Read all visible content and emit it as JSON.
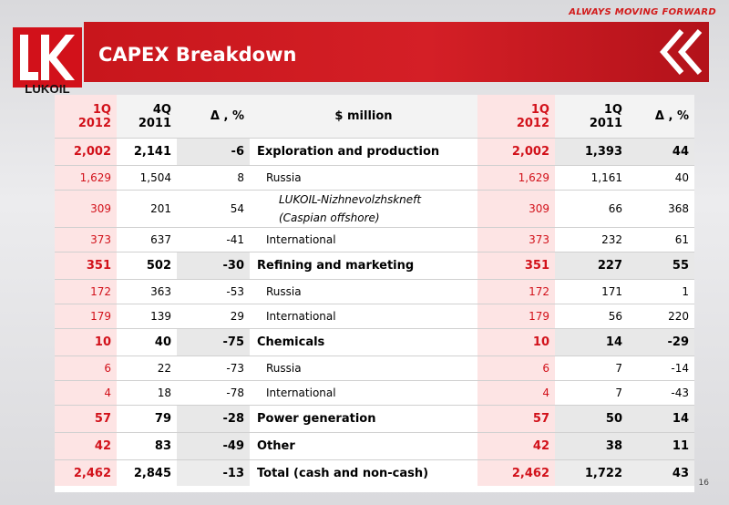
{
  "header": {
    "tagline": "ALWAYS MOVING FORWARD",
    "logo_text": "LUKOIL",
    "title": "CAPEX Breakdown"
  },
  "table": {
    "columns": [
      {
        "line1": "1Q",
        "line2": "2012"
      },
      {
        "line1": "4Q",
        "line2": "2011"
      },
      {
        "line1": "Δ , %",
        "line2": ""
      },
      {
        "line1": "$ million",
        "line2": ""
      },
      {
        "line1": "1Q",
        "line2": "2012"
      },
      {
        "line1": "1Q",
        "line2": "2011"
      },
      {
        "line1": "Δ , %",
        "line2": ""
      }
    ],
    "rows": [
      {
        "kind": "major",
        "a": "2,002",
        "b": "2,141",
        "c": "-6",
        "label": "Exploration and production",
        "d": "2,002",
        "e": "1,393",
        "f": "44"
      },
      {
        "kind": "minor",
        "a": "1,629",
        "b": "1,504",
        "c": "8",
        "label": "Russia",
        "d": "1,629",
        "e": "1,161",
        "f": "40"
      },
      {
        "kind": "minor2",
        "a": "309",
        "b": "201",
        "c": "54",
        "label": "LUKOIL-Nizhnevolzhskneft",
        "label2": "(Caspian offshore)",
        "d": "309",
        "e": "66",
        "f": "368"
      },
      {
        "kind": "minor",
        "a": "373",
        "b": "637",
        "c": "-41",
        "label": "International",
        "d": "373",
        "e": "232",
        "f": "61"
      },
      {
        "kind": "major",
        "a": "351",
        "b": "502",
        "c": "-30",
        "label": "Refining and marketing",
        "d": "351",
        "e": "227",
        "f": "55"
      },
      {
        "kind": "minor",
        "a": "172",
        "b": "363",
        "c": "-53",
        "label": "Russia",
        "d": "172",
        "e": "171",
        "f": "1"
      },
      {
        "kind": "minor",
        "a": "179",
        "b": "139",
        "c": "29",
        "label": "International",
        "d": "179",
        "e": "56",
        "f": "220"
      },
      {
        "kind": "major",
        "a": "10",
        "b": "40",
        "c": "-75",
        "label": "Chemicals",
        "d": "10",
        "e": "14",
        "f": "-29"
      },
      {
        "kind": "minor",
        "a": "6",
        "b": "22",
        "c": "-73",
        "label": "Russia",
        "d": "6",
        "e": "7",
        "f": "-14"
      },
      {
        "kind": "minor",
        "a": "4",
        "b": "18",
        "c": "-78",
        "label": "International",
        "d": "4",
        "e": "7",
        "f": "-43"
      },
      {
        "kind": "major",
        "a": "57",
        "b": "79",
        "c": "-28",
        "label": "Power generation",
        "d": "57",
        "e": "50",
        "f": "14"
      },
      {
        "kind": "major",
        "a": "42",
        "b": "83",
        "c": "-49",
        "label": "Other",
        "d": "42",
        "e": "38",
        "f": "11"
      },
      {
        "kind": "total",
        "a": "2,462",
        "b": "2,845",
        "c": "-13",
        "label": "Total (cash and non-cash)",
        "d": "2,462",
        "e": "1,722",
        "f": "43"
      }
    ]
  },
  "footer": {
    "page_number": "16"
  },
  "colors": {
    "brand_red": "#d2111a"
  }
}
